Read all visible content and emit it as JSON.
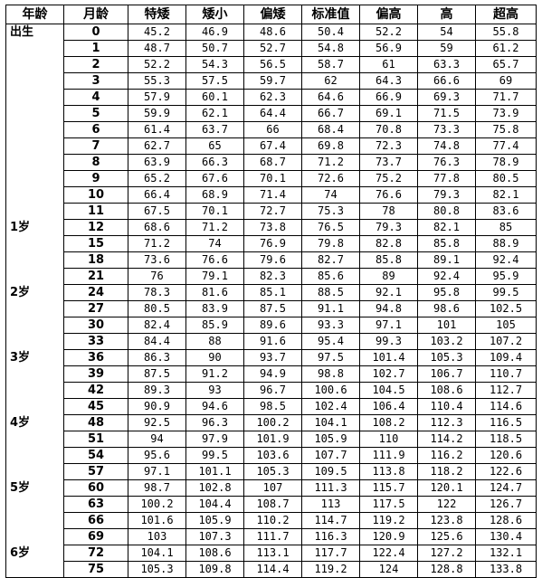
{
  "headers": [
    "年龄",
    "月龄",
    "特矮",
    "矮小",
    "偏矮",
    "标准值",
    "偏高",
    "高",
    "超高"
  ],
  "rows": [
    {
      "age": "出生",
      "month": "0",
      "values": [
        "45.2",
        "46.9",
        "48.6",
        "50.4",
        "52.2",
        "54",
        "55.8"
      ]
    },
    {
      "age": "",
      "month": "1",
      "values": [
        "48.7",
        "50.7",
        "52.7",
        "54.8",
        "56.9",
        "59",
        "61.2"
      ]
    },
    {
      "age": "",
      "month": "2",
      "values": [
        "52.2",
        "54.3",
        "56.5",
        "58.7",
        "61",
        "63.3",
        "65.7"
      ]
    },
    {
      "age": "",
      "month": "3",
      "values": [
        "55.3",
        "57.5",
        "59.7",
        "62",
        "64.3",
        "66.6",
        "69"
      ]
    },
    {
      "age": "",
      "month": "4",
      "values": [
        "57.9",
        "60.1",
        "62.3",
        "64.6",
        "66.9",
        "69.3",
        "71.7"
      ]
    },
    {
      "age": "",
      "month": "5",
      "values": [
        "59.9",
        "62.1",
        "64.4",
        "66.7",
        "69.1",
        "71.5",
        "73.9"
      ]
    },
    {
      "age": "",
      "month": "6",
      "values": [
        "61.4",
        "63.7",
        "66",
        "68.4",
        "70.8",
        "73.3",
        "75.8"
      ]
    },
    {
      "age": "",
      "month": "7",
      "values": [
        "62.7",
        "65",
        "67.4",
        "69.8",
        "72.3",
        "74.8",
        "77.4"
      ]
    },
    {
      "age": "",
      "month": "8",
      "values": [
        "63.9",
        "66.3",
        "68.7",
        "71.2",
        "73.7",
        "76.3",
        "78.9"
      ]
    },
    {
      "age": "",
      "month": "9",
      "values": [
        "65.2",
        "67.6",
        "70.1",
        "72.6",
        "75.2",
        "77.8",
        "80.5"
      ]
    },
    {
      "age": "",
      "month": "10",
      "values": [
        "66.4",
        "68.9",
        "71.4",
        "74",
        "76.6",
        "79.3",
        "82.1"
      ]
    },
    {
      "age": "",
      "month": "11",
      "values": [
        "67.5",
        "70.1",
        "72.7",
        "75.3",
        "78",
        "80.8",
        "83.6"
      ]
    },
    {
      "age": "1岁",
      "month": "12",
      "values": [
        "68.6",
        "71.2",
        "73.8",
        "76.5",
        "79.3",
        "82.1",
        "85"
      ]
    },
    {
      "age": "",
      "month": "15",
      "values": [
        "71.2",
        "74",
        "76.9",
        "79.8",
        "82.8",
        "85.8",
        "88.9"
      ]
    },
    {
      "age": "",
      "month": "18",
      "values": [
        "73.6",
        "76.6",
        "79.6",
        "82.7",
        "85.8",
        "89.1",
        "92.4"
      ]
    },
    {
      "age": "",
      "month": "21",
      "values": [
        "76",
        "79.1",
        "82.3",
        "85.6",
        "89",
        "92.4",
        "95.9"
      ]
    },
    {
      "age": "2岁",
      "month": "24",
      "values": [
        "78.3",
        "81.6",
        "85.1",
        "88.5",
        "92.1",
        "95.8",
        "99.5"
      ]
    },
    {
      "age": "",
      "month": "27",
      "values": [
        "80.5",
        "83.9",
        "87.5",
        "91.1",
        "94.8",
        "98.6",
        "102.5"
      ]
    },
    {
      "age": "",
      "month": "30",
      "values": [
        "82.4",
        "85.9",
        "89.6",
        "93.3",
        "97.1",
        "101",
        "105"
      ]
    },
    {
      "age": "",
      "month": "33",
      "values": [
        "84.4",
        "88",
        "91.6",
        "95.4",
        "99.3",
        "103.2",
        "107.2"
      ]
    },
    {
      "age": "3岁",
      "month": "36",
      "values": [
        "86.3",
        "90",
        "93.7",
        "97.5",
        "101.4",
        "105.3",
        "109.4"
      ]
    },
    {
      "age": "",
      "month": "39",
      "values": [
        "87.5",
        "91.2",
        "94.9",
        "98.8",
        "102.7",
        "106.7",
        "110.7"
      ]
    },
    {
      "age": "",
      "month": "42",
      "values": [
        "89.3",
        "93",
        "96.7",
        "100.6",
        "104.5",
        "108.6",
        "112.7"
      ]
    },
    {
      "age": "",
      "month": "45",
      "values": [
        "90.9",
        "94.6",
        "98.5",
        "102.4",
        "106.4",
        "110.4",
        "114.6"
      ]
    },
    {
      "age": "4岁",
      "month": "48",
      "values": [
        "92.5",
        "96.3",
        "100.2",
        "104.1",
        "108.2",
        "112.3",
        "116.5"
      ]
    },
    {
      "age": "",
      "month": "51",
      "values": [
        "94",
        "97.9",
        "101.9",
        "105.9",
        "110",
        "114.2",
        "118.5"
      ]
    },
    {
      "age": "",
      "month": "54",
      "values": [
        "95.6",
        "99.5",
        "103.6",
        "107.7",
        "111.9",
        "116.2",
        "120.6"
      ]
    },
    {
      "age": "",
      "month": "57",
      "values": [
        "97.1",
        "101.1",
        "105.3",
        "109.5",
        "113.8",
        "118.2",
        "122.6"
      ]
    },
    {
      "age": "5岁",
      "month": "60",
      "values": [
        "98.7",
        "102.8",
        "107",
        "111.3",
        "115.7",
        "120.1",
        "124.7"
      ]
    },
    {
      "age": "",
      "month": "63",
      "values": [
        "100.2",
        "104.4",
        "108.7",
        "113",
        "117.5",
        "122",
        "126.7"
      ]
    },
    {
      "age": "",
      "month": "66",
      "values": [
        "101.6",
        "105.9",
        "110.2",
        "114.7",
        "119.2",
        "123.8",
        "128.6"
      ]
    },
    {
      "age": "",
      "month": "69",
      "values": [
        "103",
        "107.3",
        "111.7",
        "116.3",
        "120.9",
        "125.6",
        "130.4"
      ]
    },
    {
      "age": "6岁",
      "month": "72",
      "values": [
        "104.1",
        "108.6",
        "113.1",
        "117.7",
        "122.4",
        "127.2",
        "132.1"
      ]
    },
    {
      "age": "",
      "month": "75",
      "values": [
        "105.3",
        "109.8",
        "114.4",
        "119.2",
        "124",
        "128.8",
        "133.8"
      ]
    }
  ]
}
